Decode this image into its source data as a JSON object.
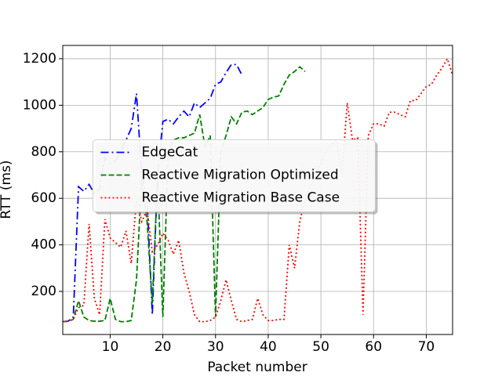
{
  "chart_data": {
    "type": "line",
    "xlabel": "Packet number",
    "ylabel": "RTT (ms)",
    "xlim": [
      1,
      75
    ],
    "ylim": [
      15,
      1257
    ],
    "xticks": [
      10,
      20,
      30,
      40,
      50,
      60,
      70
    ],
    "yticks": [
      200,
      400,
      600,
      800,
      1000,
      1200
    ],
    "grid": true,
    "legend": "center",
    "series": [
      {
        "name": "EdgeCat",
        "color": "#0000ff",
        "linestyle": "dashdot",
        "x": [
          1,
          2,
          3,
          4,
          5,
          6,
          7,
          8,
          9,
          10,
          11,
          12,
          13,
          14,
          15,
          16,
          17,
          18,
          19,
          20,
          21,
          22,
          23,
          24,
          25,
          26,
          27,
          28,
          29,
          30,
          31,
          32,
          33,
          34,
          35
        ],
        "values": [
          70,
          72,
          90,
          650,
          630,
          660,
          620,
          640,
          775,
          750,
          760,
          800,
          850,
          900,
          1050,
          700,
          600,
          100,
          700,
          930,
          940,
          920,
          950,
          975,
          950,
          1010,
          990,
          1010,
          1030,
          1090,
          1100,
          1140,
          1175,
          1175,
          1130
        ]
      },
      {
        "name": "Reactive Migration Optimized",
        "color": "#008000",
        "linestyle": "dashed",
        "x": [
          1,
          2,
          3,
          4,
          5,
          6,
          7,
          8,
          9,
          10,
          11,
          12,
          13,
          14,
          15,
          16,
          17,
          18,
          19,
          20,
          21,
          22,
          23,
          24,
          25,
          26,
          27,
          28,
          29,
          30,
          31,
          32,
          33,
          34,
          35,
          36,
          37,
          38,
          39,
          40,
          41,
          42,
          43,
          44,
          45,
          46,
          47
        ],
        "values": [
          70,
          72,
          80,
          160,
          90,
          75,
          72,
          72,
          75,
          170,
          80,
          70,
          70,
          75,
          250,
          700,
          500,
          150,
          700,
          90,
          800,
          850,
          860,
          860,
          870,
          880,
          960,
          820,
          870,
          90,
          800,
          870,
          950,
          920,
          970,
          975,
          960,
          975,
          990,
          1025,
          1035,
          1040,
          1090,
          1130,
          1145,
          1165,
          1145
        ]
      },
      {
        "name": "Reactive Migration Base Case",
        "color": "#ff0000",
        "linestyle": "dotted",
        "x": [
          1,
          2,
          3,
          4,
          5,
          6,
          7,
          8,
          9,
          10,
          11,
          12,
          13,
          14,
          15,
          16,
          17,
          18,
          19,
          20,
          21,
          22,
          23,
          24,
          25,
          26,
          27,
          28,
          29,
          30,
          31,
          32,
          33,
          34,
          35,
          36,
          37,
          38,
          39,
          40,
          41,
          42,
          43,
          44,
          45,
          46,
          47,
          48,
          49,
          50,
          51,
          52,
          53,
          54,
          55,
          56,
          57,
          58,
          59,
          60,
          61,
          62,
          63,
          64,
          65,
          66,
          67,
          68,
          69,
          70,
          71,
          72,
          73,
          74,
          75
        ],
        "values": [
          70,
          72,
          80,
          130,
          140,
          490,
          170,
          100,
          510,
          430,
          410,
          390,
          460,
          320,
          600,
          500,
          550,
          370,
          400,
          450,
          420,
          360,
          420,
          280,
          200,
          100,
          70,
          70,
          75,
          90,
          160,
          250,
          160,
          80,
          70,
          75,
          80,
          170,
          100,
          75,
          75,
          80,
          80,
          400,
          300,
          500,
          600,
          650,
          700,
          750,
          800,
          830,
          850,
          700,
          1010,
          850,
          860,
          100,
          870,
          920,
          920,
          910,
          970,
          970,
          960,
          950,
          1020,
          1020,
          1050,
          1080,
          1090,
          1130,
          1160,
          1200,
          1130
        ]
      }
    ]
  }
}
